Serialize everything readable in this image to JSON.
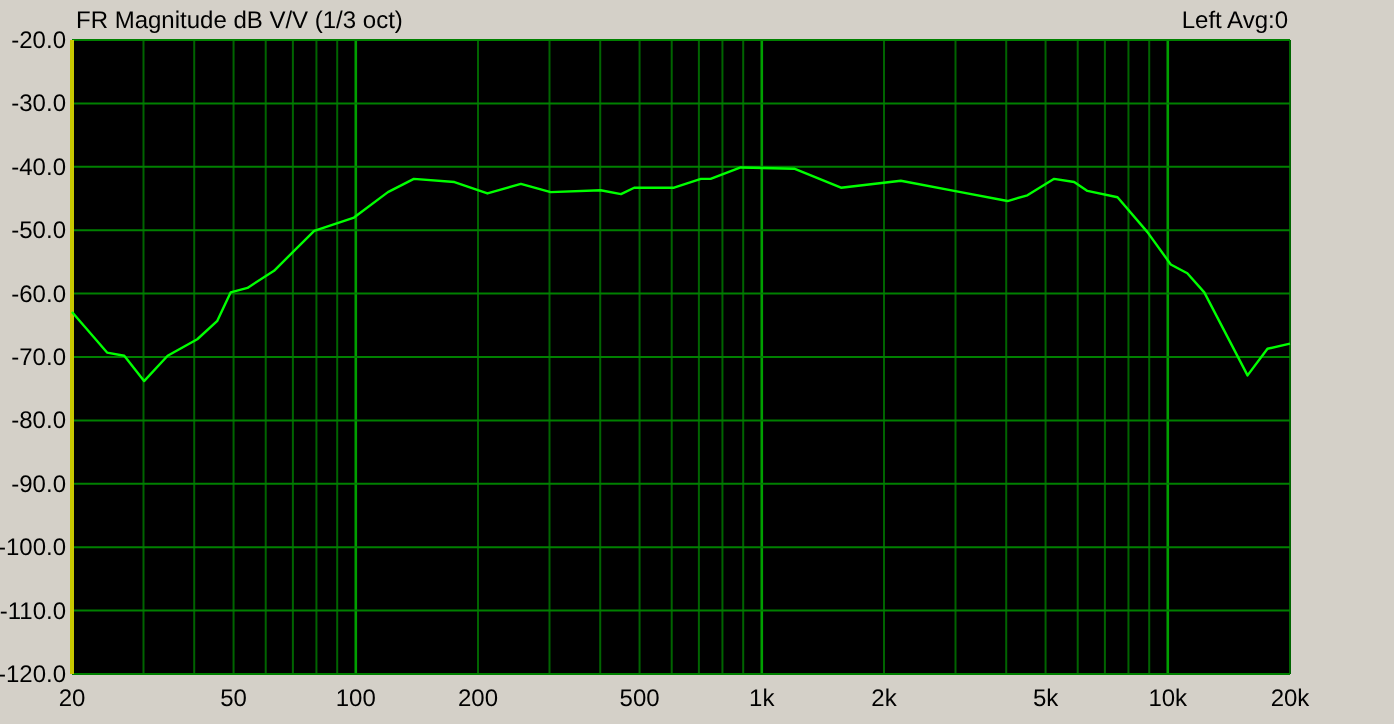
{
  "chart_data": {
    "type": "line",
    "title": "FR Magnitude dB V/V (1/3 oct)",
    "annotations": [
      "Left Avg:0"
    ],
    "log": "x",
    "grid": true,
    "marker": "none",
    "line_style": "solid",
    "x": [
      20,
      24.4,
      26.9,
      30.1,
      34.4,
      40.7,
      45.6,
      49.2,
      54.1,
      62.9,
      79,
      99,
      120,
      139,
      175,
      211,
      255,
      302,
      401,
      450,
      485,
      608,
      708,
      748,
      887,
      1202,
      1567,
      2200,
      3090,
      4030,
      4510,
      5250,
      5880,
      6340,
      7520,
      8910,
      10170,
      11170,
      12300,
      15720,
      17600,
      20000
    ],
    "series": [
      {
        "color": "#00ff00",
        "values": [
          -62.9,
          -69.3,
          -69.8,
          -73.8,
          -69.8,
          -67.2,
          -64.3,
          -59.8,
          -59.1,
          -56.4,
          -50.1,
          -48,
          -44,
          -41.9,
          -42.4,
          -44.2,
          -42.7,
          -44,
          -43.7,
          -44.3,
          -43.3,
          -43.3,
          -41.9,
          -41.9,
          -40.1,
          -40.3,
          -43.3,
          -42.2,
          -44,
          -45.4,
          -44.5,
          -41.9,
          -42.4,
          -43.8,
          -44.8,
          -50.3,
          -55.4,
          -56.8,
          -59.8,
          -72.9,
          -68.7,
          -67.9
        ]
      }
    ],
    "xlim": [
      20,
      20000
    ],
    "ylim": [
      -120,
      -20
    ],
    "xticks": [
      20,
      {
        "value": 30,
        "label": null
      },
      {
        "value": 40,
        "label": null
      },
      50,
      {
        "value": 60,
        "label": null
      },
      {
        "value": 70,
        "label": null
      },
      {
        "value": 80,
        "label": null
      },
      {
        "value": 90,
        "label": null
      },
      100,
      200,
      {
        "value": 300,
        "label": null
      },
      {
        "value": 400,
        "label": null
      },
      500,
      {
        "value": 600,
        "label": null
      },
      {
        "value": 700,
        "label": null
      },
      {
        "value": 800,
        "label": null
      },
      {
        "value": 900,
        "label": null
      },
      {
        "value": 1000,
        "label": "1k"
      },
      {
        "value": 2000,
        "label": "2k"
      },
      {
        "value": 3000,
        "label": null
      },
      {
        "value": 4000,
        "label": null
      },
      {
        "value": 5000,
        "label": "5k"
      },
      {
        "value": 6000,
        "label": null
      },
      {
        "value": 7000,
        "label": null
      },
      {
        "value": 8000,
        "label": null
      },
      {
        "value": 9000,
        "label": null
      },
      {
        "value": 10000,
        "label": "10k"
      },
      {
        "value": 20000,
        "label": "20k"
      }
    ],
    "yticks": [
      {
        "value": -20,
        "label": "-20.0"
      },
      {
        "value": -30,
        "label": "-30.0"
      },
      {
        "value": -40,
        "label": "-40.0"
      },
      {
        "value": -50,
        "label": "-50.0"
      },
      {
        "value": -60,
        "label": "-60.0"
      },
      {
        "value": -70,
        "label": "-70.0"
      },
      {
        "value": -80,
        "label": "-80.0"
      },
      {
        "value": -90,
        "label": "-90.0"
      },
      {
        "value": -100,
        "label": "-100.0"
      },
      {
        "value": -110,
        "label": "-110.0"
      },
      {
        "value": -120,
        "label": "-120.0"
      }
    ]
  }
}
